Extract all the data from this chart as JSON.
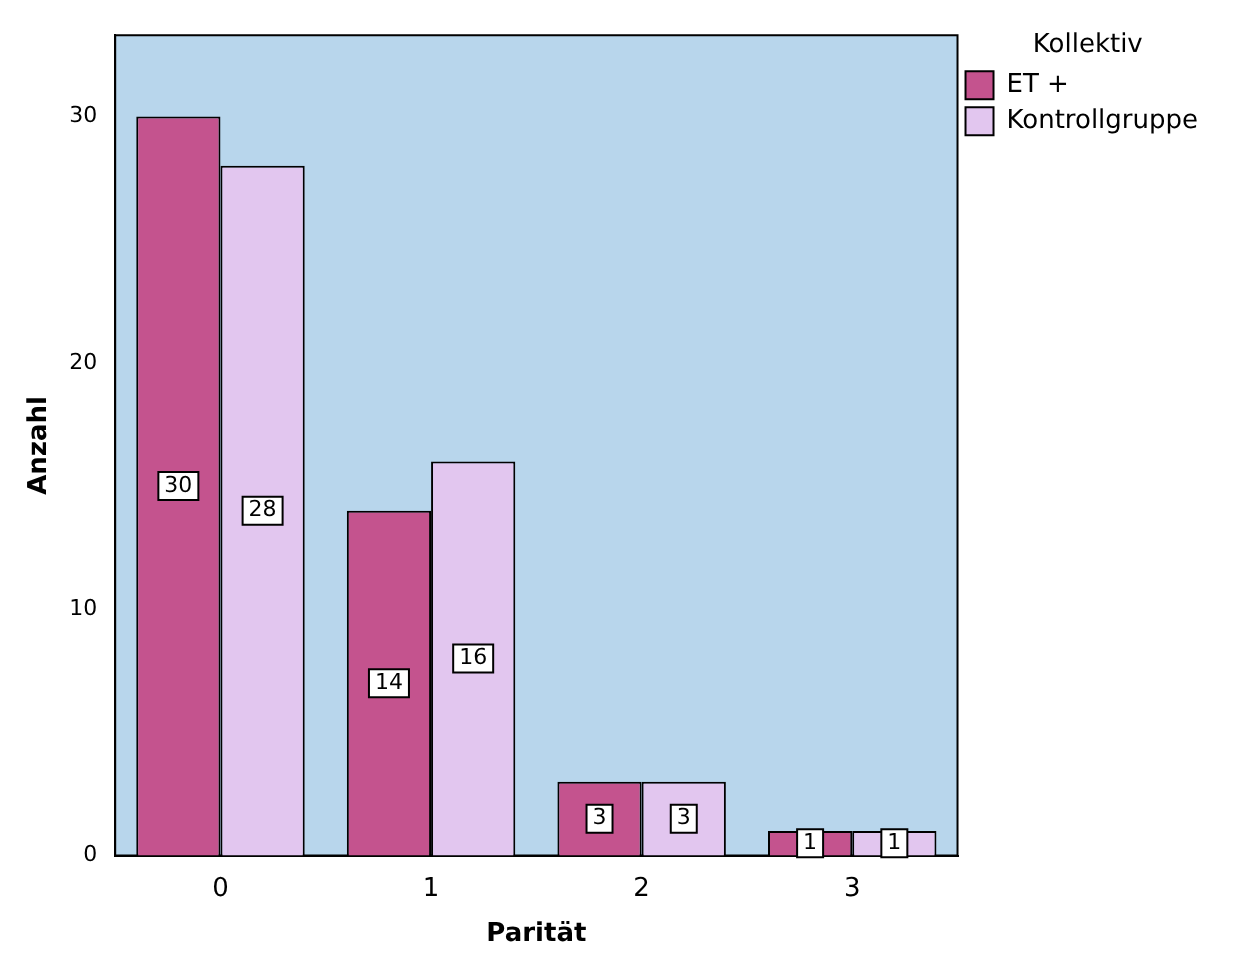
{
  "chart_data": {
    "type": "bar",
    "xlabel": "Parität",
    "ylabel": "Anzahl",
    "legend_title": "Kollektiv",
    "categories": [
      "0",
      "1",
      "2",
      "3"
    ],
    "series": [
      {
        "name": "ET +",
        "color": "#c4538e",
        "values": [
          30,
          14,
          3,
          1
        ]
      },
      {
        "name": "Kontrollgruppe",
        "color": "#e2c6ef",
        "values": [
          28,
          16,
          3,
          1
        ]
      }
    ],
    "ylim": [
      0,
      33.3
    ],
    "yticks": [
      0,
      10,
      20,
      30
    ],
    "grid": false,
    "legend": "top right",
    "data_labels": true
  }
}
